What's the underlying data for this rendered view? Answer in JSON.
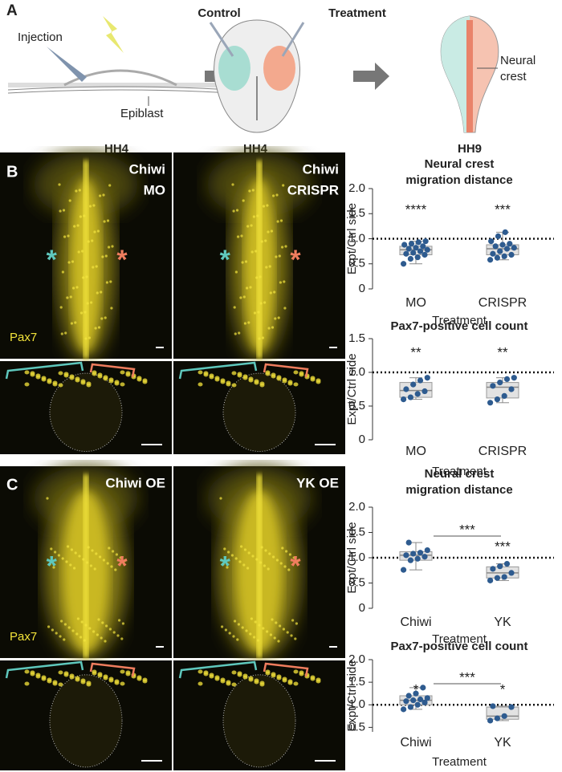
{
  "figure": {
    "A": {
      "label": "A",
      "injection": "Injection",
      "epiblast": "Epiblast",
      "stage1": "HH4",
      "control": "Control",
      "treatment": "Treatment",
      "stage2": "HH4",
      "neural": "Neural",
      "crest": "crest",
      "stage3": "HH9"
    },
    "B": {
      "label": "B",
      "images": [
        {
          "lines": [
            "Chiwi",
            "MO"
          ]
        },
        {
          "lines": [
            "Chiwi",
            "CRISPR"
          ]
        }
      ],
      "stain": "Pax7",
      "asterisk": "*"
    },
    "C": {
      "label": "C",
      "images": [
        {
          "lines": [
            "Chiwi OE"
          ]
        },
        {
          "lines": [
            "YK OE"
          ]
        }
      ],
      "stain": "Pax7",
      "asterisk": "*"
    }
  },
  "chart_data": [
    {
      "type": "box",
      "title": [
        "Neural crest",
        "migration distance"
      ],
      "ylabel": "Expt/Ctrl side",
      "xlabel": "Treatment",
      "categories": [
        "MO",
        "CRISPR"
      ],
      "ylim": [
        0,
        2
      ],
      "yticks": [
        0,
        0.5,
        {
          "value": 1,
          "label": "1.0"
        },
        1.5,
        {
          "value": 2,
          "label": "2.0"
        }
      ],
      "reference_line": 1,
      "significance": [
        "****",
        "***"
      ],
      "point_color": "#2e5b8f",
      "box_color": "#e2e2e2",
      "boxes": [
        {
          "min": 0.5,
          "q1": 0.68,
          "median": 0.78,
          "q3": 0.85,
          "max": 0.95
        },
        {
          "min": 0.58,
          "q1": 0.68,
          "median": 0.8,
          "q3": 0.88,
          "max": 1.13
        }
      ],
      "points": [
        [
          0.5,
          0.6,
          0.63,
          0.68,
          0.7,
          0.72,
          0.75,
          0.78,
          0.8,
          0.82,
          0.85,
          0.88,
          0.9,
          0.93,
          0.95
        ],
        [
          0.58,
          0.62,
          0.65,
          0.68,
          0.7,
          0.75,
          0.8,
          0.82,
          0.85,
          0.88,
          0.9,
          0.95,
          1.05,
          1.13
        ]
      ]
    },
    {
      "type": "box",
      "title": [
        "Pax7-positive cell count"
      ],
      "ylabel": "Expt/Ctrl side",
      "xlabel": "Treatment",
      "categories": [
        "MO",
        "CRISPR"
      ],
      "ylim": [
        0,
        1.5
      ],
      "yticks": [
        0,
        0.5,
        {
          "value": 1,
          "label": "1.0"
        },
        1.5
      ],
      "reference_line": 1,
      "significance": [
        "**",
        "**"
      ],
      "point_color": "#2e5b8f",
      "box_color": "#e2e2e2",
      "boxes": [
        {
          "min": 0.6,
          "q1": 0.63,
          "median": 0.73,
          "q3": 0.85,
          "max": 0.92
        },
        {
          "min": 0.55,
          "q1": 0.62,
          "median": 0.78,
          "q3": 0.85,
          "max": 0.92
        }
      ],
      "points": [
        [
          0.6,
          0.63,
          0.68,
          0.72,
          0.75,
          0.82,
          0.88,
          0.92
        ],
        [
          0.55,
          0.6,
          0.65,
          0.75,
          0.8,
          0.85,
          0.9,
          0.92
        ]
      ]
    },
    {
      "type": "box",
      "title": [
        "Neural crest",
        "migration distance"
      ],
      "ylabel": "Expt/Ctrl side",
      "xlabel": "Treatment",
      "categories": [
        "Chiwi",
        "YK"
      ],
      "ylim": [
        0,
        2
      ],
      "yticks": [
        0,
        0.5,
        {
          "value": 1,
          "label": "1.0"
        },
        1.5,
        {
          "value": 2,
          "label": "2.0"
        }
      ],
      "reference_line": 1,
      "significance": [
        null,
        "***"
      ],
      "bracket": "***",
      "point_color": "#2e5b8f",
      "box_color": "#e2e2e2",
      "boxes": [
        {
          "min": 0.76,
          "q1": 0.95,
          "median": 1.05,
          "q3": 1.12,
          "max": 1.3
        },
        {
          "min": 0.55,
          "q1": 0.6,
          "median": 0.7,
          "q3": 0.82,
          "max": 0.88
        }
      ],
      "points": [
        [
          0.76,
          0.95,
          0.98,
          1.02,
          1.05,
          1.08,
          1.1,
          1.15,
          1.3
        ],
        [
          0.55,
          0.6,
          0.62,
          0.7,
          0.78,
          0.83,
          0.88
        ]
      ]
    },
    {
      "type": "box",
      "title": [
        "Pax7-positive cell count"
      ],
      "ylabel": "Expt/Ctrl side",
      "xlabel": "Treatment",
      "categories": [
        "Chiwi",
        "YK"
      ],
      "ylim": [
        0.4,
        2
      ],
      "yticks": [
        0.5,
        {
          "value": 1,
          "label": "1.0"
        },
        1.5,
        {
          "value": 2,
          "label": "2.0"
        }
      ],
      "reference_line": 1,
      "significance": [
        "*",
        "*"
      ],
      "bracket": "***",
      "point_color": "#2e5b8f",
      "box_color": "#e2e2e2",
      "boxes": [
        {
          "min": 0.9,
          "q1": 1.0,
          "median": 1.1,
          "q3": 1.2,
          "max": 1.38
        },
        {
          "min": 0.65,
          "q1": 0.68,
          "median": 0.75,
          "q3": 0.95,
          "max": 0.97
        }
      ],
      "points": [
        [
          0.9,
          0.95,
          1.0,
          1.05,
          1.08,
          1.1,
          1.12,
          1.15,
          1.2,
          1.25,
          1.38
        ],
        [
          0.65,
          0.7,
          0.75,
          0.95,
          0.97
        ]
      ]
    }
  ]
}
